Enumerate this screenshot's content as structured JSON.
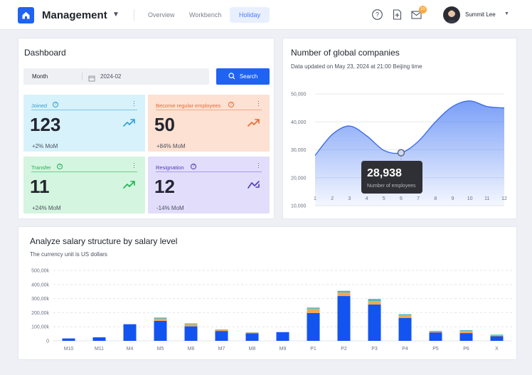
{
  "header": {
    "app_title": "Management",
    "tabs": [
      {
        "label": "Overview",
        "active": false
      },
      {
        "label": "Workbench",
        "active": false
      },
      {
        "label": "Holiday",
        "active": true
      }
    ],
    "icons": [
      "help-icon",
      "new-document-icon",
      "mail-icon"
    ],
    "mail_badge": "10",
    "user_name": "Summit Lee"
  },
  "dashboard": {
    "title": "Dashboard",
    "filter_label": "Month",
    "filter_value": "2024-02",
    "search_label": "Search",
    "stats": [
      {
        "label": "Joined",
        "value": "123",
        "mom": "+2% MoM",
        "trend": "up",
        "bg": "#d7f2fb",
        "line": "#7fc6e6",
        "color": "#2f9fd1"
      },
      {
        "label": "Become regular employees",
        "value": "50",
        "mom": "+84% MoM",
        "trend": "up",
        "bg": "#fde1d2",
        "line": "#f2a98a",
        "color": "#e86a35"
      },
      {
        "label": "Transfer",
        "value": "11",
        "mom": "+24% MoM",
        "trend": "up",
        "bg": "#d4f5df",
        "line": "#6ccf90",
        "color": "#1fb256"
      },
      {
        "label": "Resignation",
        "value": "12",
        "mom": "-14% MoM",
        "trend": "down",
        "bg": "#e2ddfb",
        "line": "#a79bee",
        "color": "#4b3fb5"
      }
    ]
  },
  "global": {
    "title": "Number of global companies",
    "subtitle": "Data updated on May 23, 2024 at 21:00 Beijing time",
    "tooltip_value": "28,938",
    "tooltip_label": "Number of employees"
  },
  "salary": {
    "title": "Analyze salary structure by salary level",
    "subtitle": "The currency unit is US dollars"
  },
  "chart_data": [
    {
      "type": "area",
      "title": "Number of global companies",
      "x": [
        1,
        2,
        3,
        4,
        5,
        6,
        7,
        8,
        9,
        10,
        11,
        12
      ],
      "y": [
        28000,
        35500,
        38500,
        35000,
        29800,
        28938,
        33000,
        40000,
        45500,
        47500,
        45500,
        45000
      ],
      "ylim": [
        10000,
        50000
      ],
      "yticks": [
        "10,000",
        "20,000",
        "30,000",
        "40,000",
        "50,000"
      ],
      "highlight_index": 5,
      "color": "#4f7ff5"
    },
    {
      "type": "bar",
      "title": "Analyze salary structure by salary level",
      "categories": [
        "M10",
        "M11",
        "M4",
        "M5",
        "M6",
        "M7",
        "M8",
        "M9",
        "P1",
        "P2",
        "P3",
        "P4",
        "P5",
        "P6",
        "X"
      ],
      "series": [
        {
          "values": [
            17000,
            25000,
            118000,
            142000,
            103000,
            70000,
            53000,
            62000,
            198000,
            318000,
            258000,
            163000,
            60000,
            55000,
            33000
          ],
          "color": "#1353f0"
        },
        {
          "values": [
            0,
            0,
            0,
            15000,
            15000,
            8000,
            5000,
            0,
            30000,
            25000,
            25000,
            18000,
            8000,
            15000,
            7000
          ],
          "color": "#f5a94b"
        },
        {
          "values": [
            0,
            0,
            0,
            8000,
            6000,
            3000,
            2000,
            0,
            8000,
            12000,
            14000,
            8000,
            3000,
            6000,
            4000
          ],
          "color": "#46b8c2"
        }
      ],
      "ylim": [
        0,
        500000
      ],
      "yticks": [
        "0",
        "100,00k",
        "200,00k",
        "300,00k",
        "400,00k",
        "500,00k"
      ]
    }
  ]
}
